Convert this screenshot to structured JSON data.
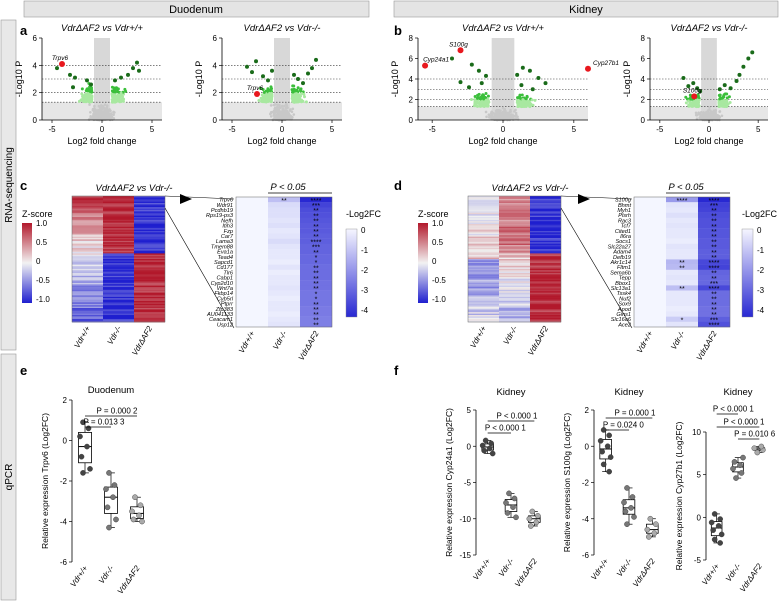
{
  "colors": {
    "header_bg": "#e4e4e4",
    "side_bg": "#e8e8e8",
    "sig_dark": "#1a6b1a",
    "sig_mid": "#3bbf3b",
    "sig_light": "#a8e8a0",
    "ns": "#c8c8c8",
    "highlight": "#e8181e",
    "heat_red": "#b2182b",
    "heat_blue": "#1f1fcf"
  },
  "headers": {
    "left": "Duodenum",
    "right": "Kidney"
  },
  "side_labels": {
    "top": "RNA-sequencing",
    "bottom": "qPCR"
  },
  "panels": {
    "a": "a",
    "b": "b",
    "c": "c",
    "d": "d",
    "e": "e",
    "f": "f"
  },
  "chart_data": [
    {
      "id": "a1",
      "type": "scatter",
      "title": "VdrΔAF2 vs Vdr+/+",
      "xlabel": "Log2 fold change",
      "ylabel": "-Log10 P",
      "xlim": [
        -6,
        6
      ],
      "ylim": [
        0,
        6
      ],
      "xticks": [
        "-5",
        "0",
        "5"
      ],
      "yticks": [
        "0",
        "2",
        "4",
        "6"
      ],
      "highlight": [
        {
          "label": "Trpv6",
          "x": -4.0,
          "y": 4.1
        }
      ],
      "sig_points": [
        [
          -4.5,
          3.8
        ],
        [
          -3.2,
          3.3
        ],
        [
          -2.7,
          3.1
        ],
        [
          -2.9,
          2.4
        ],
        [
          -1.5,
          2.9
        ],
        [
          -1.1,
          2.6
        ],
        [
          1.3,
          2.9
        ],
        [
          1.9,
          3.1
        ],
        [
          2.6,
          3.3
        ],
        [
          3.1,
          3.8
        ],
        [
          3.5,
          4.2
        ],
        [
          3.7,
          3.6
        ]
      ]
    },
    {
      "id": "a2",
      "type": "scatter",
      "title": "VdrΔAF2 vs Vdr-/-",
      "xlabel": "Log2 fold change",
      "ylabel": "-Log10 P",
      "xlim": [
        -6,
        6
      ],
      "ylim": [
        0,
        6
      ],
      "xticks": [
        "-5",
        "0",
        "5"
      ],
      "yticks": [
        "0",
        "2",
        "4",
        "6"
      ],
      "highlight": [
        {
          "label": "Trpv6",
          "x": -2.5,
          "y": 1.9
        }
      ],
      "sig_points": [
        [
          -3.5,
          3.9
        ],
        [
          -3.0,
          3.5
        ],
        [
          -2.6,
          4.3
        ],
        [
          -1.9,
          3.2
        ],
        [
          -1.4,
          2.9
        ],
        [
          -1.0,
          3.6
        ],
        [
          1.2,
          3.3
        ],
        [
          1.6,
          3.0
        ],
        [
          2.1,
          2.7
        ],
        [
          2.6,
          3.4
        ],
        [
          3.0,
          3.8
        ],
        [
          3.4,
          4.4
        ]
      ]
    },
    {
      "id": "b1",
      "type": "scatter",
      "title": "VdrΔAF2 vs Vdr+/+",
      "xlabel": "Log2 fold change",
      "ylabel": "-Log10 P",
      "xlim": [
        -6,
        6
      ],
      "ylim": [
        0,
        8
      ],
      "xticks": [
        "-5",
        "0",
        "5"
      ],
      "yticks": [
        "0",
        "2",
        "4",
        "6",
        "8"
      ],
      "highlight": [
        {
          "label": "S100g",
          "x": -3.0,
          "y": 6.8
        },
        {
          "label": "Cyp24a1",
          "x": -5.5,
          "y": 5.3
        },
        {
          "label": "Cyp27b1",
          "x": 6.0,
          "y": 5.0
        }
      ],
      "sig_points": [
        [
          -3.6,
          6.0
        ],
        [
          -2.2,
          5.4
        ],
        [
          -1.7,
          4.8
        ],
        [
          -1.2,
          4.3
        ],
        [
          1.0,
          4.4
        ],
        [
          1.4,
          5.1
        ],
        [
          1.9,
          4.8
        ],
        [
          2.5,
          4.1
        ],
        [
          3.0,
          3.6
        ],
        [
          -3.0,
          3.7
        ],
        [
          -2.4,
          3.2
        ],
        [
          -1.5,
          3.6
        ],
        [
          1.3,
          3.4
        ],
        [
          2.1,
          3.0
        ]
      ]
    },
    {
      "id": "b2",
      "type": "scatter",
      "title": "VdrΔAF2 vs Vdr-/-",
      "xlabel": "Log2 fold change",
      "ylabel": "-Log10 P",
      "xlim": [
        -6,
        6
      ],
      "ylim": [
        0,
        8
      ],
      "xticks": [
        "-5",
        "0",
        "5"
      ],
      "yticks": [
        "0",
        "2",
        "4",
        "6",
        "8"
      ],
      "highlight": [
        {
          "label": "S100g",
          "x": -1.5,
          "y": 2.3
        }
      ],
      "sig_points": [
        [
          -2.6,
          4.1
        ],
        [
          -2.1,
          3.3
        ],
        [
          -1.6,
          3.6
        ],
        [
          -1.2,
          3.1
        ],
        [
          -0.9,
          2.8
        ],
        [
          1.1,
          3.0
        ],
        [
          1.6,
          3.4
        ],
        [
          2.2,
          3.1
        ],
        [
          2.8,
          3.8
        ],
        [
          3.1,
          4.4
        ],
        [
          3.5,
          5.2
        ],
        [
          4.0,
          6.0
        ],
        [
          4.4,
          6.6
        ]
      ]
    },
    {
      "id": "c",
      "type": "heatmap",
      "title": "VdrΔAF2 vs Vdr-/-",
      "columns": [
        "Vdr+/+",
        "Vdr-/-",
        "VdrΔAF2"
      ],
      "zscore_label": "Z-score",
      "zscore_ticks": [
        "1.0",
        "0.5",
        "0",
        "-0.5",
        "-1.0"
      ],
      "fc_label": "-Log2FC",
      "fc_ticks": [
        "0",
        "-1",
        "-2",
        "-3",
        "-4"
      ],
      "pvalue_label": "P < 0.05",
      "genes": [
        "Trpv6",
        "Wdr91",
        "Pcdhb19",
        "Rps19-ps3",
        "Nefh",
        "Itih3",
        "Fzp",
        "Car7",
        "Lama3",
        "Tmem88",
        "Eva1a",
        "Tead4",
        "Sapcd1",
        "Cd177",
        "Tlr6",
        "Cabp1",
        "Cyp2d10",
        "Wnt7a",
        "Fkbp14",
        "Cyb5rl",
        "Ptprr",
        "Zfp383",
        "AU041133",
        "Ceacam1",
        "Usp12"
      ],
      "sig_ko": [
        "**",
        "",
        "",
        "",
        "",
        "",
        "",
        "",
        "",
        "",
        "",
        "",
        "",
        "",
        "",
        "",
        "",
        "",
        "",
        "",
        "",
        "",
        "",
        "",
        ""
      ],
      "sig_af2": [
        "****",
        "***",
        "**",
        "**",
        "**",
        "**",
        "**",
        "**",
        "****",
        "***",
        "**",
        "*",
        "*",
        "**",
        "**",
        "**",
        "**",
        "**",
        "*",
        "*",
        "**",
        "**",
        "**",
        "**",
        "**"
      ],
      "fc_ko": [
        -1.2,
        -0.6,
        -0.5,
        -0.5,
        -0.4,
        -0.5,
        -0.3,
        -0.4,
        -0.6,
        -0.4,
        -0.3,
        -0.3,
        -0.2,
        -0.4,
        -0.2,
        -0.3,
        -0.3,
        -0.4,
        -0.3,
        -0.2,
        -0.3,
        -0.3,
        -0.2,
        -0.3,
        -0.4
      ],
      "fc_af2": [
        -4.6,
        -3.9,
        -3.7,
        -3.6,
        -3.5,
        -3.4,
        -3.4,
        -3.3,
        -3.3,
        -3.2,
        -3.2,
        -3.1,
        -3.1,
        -3.0,
        -3.0,
        -3.0,
        -2.9,
        -2.9,
        -2.8,
        -2.8,
        -2.8,
        -2.7,
        -2.7,
        -2.6,
        -2.6
      ]
    },
    {
      "id": "d",
      "type": "heatmap",
      "title": "VdrΔAF2 vs Vdr-/-",
      "columns": [
        "Vdr+/+",
        "Vdr-/-",
        "VdrΔAF2"
      ],
      "zscore_label": "Z-score",
      "zscore_ticks": [
        "1.0",
        "0.5",
        "0",
        "-0.5",
        "-1.0"
      ],
      "fc_label": "-Log2FC",
      "fc_ticks": [
        "0",
        "-1",
        "-2",
        "-3",
        "-4"
      ],
      "pvalue_label": "P < 0.05",
      "genes": [
        "S100g",
        "Bhmt",
        "Myh1",
        "Plsrh",
        "Rac3",
        "Tcf7",
        "Cited1",
        "Il6ra",
        "Socs1",
        "Slc22a27",
        "Adam4",
        "Defb19",
        "Akr1c14",
        "Fltm1",
        "Sema6b",
        "Tepp",
        "Bbox1",
        "Slc13a1",
        "Tssk4",
        "Nuf2",
        "Sox9",
        "Apod",
        "Gins1",
        "Slc16a6",
        "Ace2"
      ],
      "sig_ko": [
        "****",
        "",
        "",
        "",
        "",
        "",
        "",
        "",
        "",
        "",
        "",
        "",
        "**",
        "**",
        "",
        "",
        "",
        "**",
        "",
        "",
        "",
        "",
        "",
        "*",
        ""
      ],
      "sig_af2": [
        "****",
        "***",
        "**",
        "**",
        "**",
        "**",
        "**",
        "**",
        "**",
        "**",
        "**",
        "**",
        "****",
        "****",
        "**",
        "**",
        "***",
        "****",
        "**",
        "**",
        "**",
        "**",
        "**",
        "***",
        "****"
      ],
      "fc_ko": [
        -2.0,
        -0.4,
        -0.3,
        -0.5,
        -0.3,
        -0.4,
        -0.3,
        -0.3,
        -0.2,
        -0.4,
        -0.3,
        -0.3,
        -1.4,
        -1.3,
        -0.3,
        -0.4,
        -0.3,
        -1.2,
        -0.3,
        -0.3,
        -0.3,
        -0.2,
        -0.3,
        -0.9,
        -0.4
      ],
      "fc_af2": [
        -4.5,
        -4.0,
        -3.9,
        -3.7,
        -3.6,
        -3.6,
        -3.5,
        -3.5,
        -3.4,
        -3.4,
        -3.3,
        -3.3,
        -3.8,
        -3.9,
        -3.2,
        -3.1,
        -3.1,
        -3.8,
        -3.0,
        -3.0,
        -3.0,
        -2.9,
        -2.9,
        -3.3,
        -3.6
      ]
    },
    {
      "id": "e",
      "type": "box",
      "title": "Duodenum",
      "ylabel": "Relative expression Trpv6 (Log2FC)",
      "groups": [
        "Vdr+/+",
        "Vdr-/-",
        "VdrΔAF2"
      ],
      "ylim": [
        -6,
        2
      ],
      "yticks": [
        "2",
        "0",
        "-2",
        "-4",
        "-6"
      ],
      "pvalues": [
        "P = 0.013 3",
        "P = 0.000 2"
      ],
      "data": [
        [
          0.9,
          0.6,
          0.2,
          -0.3,
          -0.8,
          -1.4,
          -1.6
        ],
        [
          -1.6,
          -2.2,
          -2.4,
          -2.8,
          -3.3,
          -3.9,
          -4.3
        ],
        [
          -2.8,
          -3.2,
          -3.5,
          -3.7,
          -3.9,
          -4.0
        ]
      ]
    },
    {
      "id": "f1",
      "type": "box",
      "title": "Kidney",
      "ylabel": "Relative expression Cyp24a1 (Log2FC)",
      "groups": [
        "Vdr+/+",
        "Vdr-/-",
        "VdrΔAF2"
      ],
      "ylim": [
        -15,
        5
      ],
      "yticks": [
        "5",
        "0",
        "-5",
        "-10",
        "-15"
      ],
      "pvalues": [
        "P < 0.000 1",
        "P < 0.000 1"
      ],
      "data": [
        [
          0.8,
          0.4,
          0.1,
          -0.3,
          -0.6,
          -1.0
        ],
        [
          -6.5,
          -7.2,
          -7.8,
          -8.4,
          -9.2,
          -9.8
        ],
        [
          -9.0,
          -9.6,
          -10.0,
          -10.5,
          -11.0
        ]
      ]
    },
    {
      "id": "f2",
      "type": "box",
      "title": "Kidney",
      "ylabel": "Relative expression S100g (Log2FC)",
      "groups": [
        "Vdr+/+",
        "Vdr-/-",
        "VdrΔAF2"
      ],
      "ylim": [
        -6,
        2
      ],
      "yticks": [
        "2",
        "0",
        "-2",
        "-4",
        "-6"
      ],
      "pvalues": [
        "P = 0.024 0",
        "P = 0.000 1"
      ],
      "data": [
        [
          0.9,
          0.6,
          0.3,
          0.0,
          -0.3,
          -0.6,
          -1.0,
          -1.4
        ],
        [
          -2.3,
          -2.8,
          -3.1,
          -3.4,
          -3.6,
          -3.9,
          -4.3
        ],
        [
          -4.0,
          -4.3,
          -4.6,
          -4.8,
          -5.0
        ]
      ]
    },
    {
      "id": "f3",
      "type": "box",
      "title": "Kidney",
      "ylabel": "Relative expression Cyp27b1 (Log2FC)",
      "groups": [
        "Vdr+/+",
        "Vdr-/-",
        "VdrΔAF2"
      ],
      "ylim": [
        -5,
        10
      ],
      "yticks": [
        "10",
        "5",
        "0",
        "-5"
      ],
      "pvalues": [
        "P = 0.010 6",
        "P < 0.000 1",
        "P < 0.000 1"
      ],
      "data": [
        [
          0.4,
          -0.2,
          -0.6,
          -1.0,
          -1.5,
          -2.0,
          -2.6,
          -3.0
        ],
        [
          4.6,
          5.2,
          5.7,
          6.1,
          6.5,
          7.0
        ],
        [
          7.6,
          7.9,
          8.1,
          8.3
        ]
      ]
    }
  ]
}
